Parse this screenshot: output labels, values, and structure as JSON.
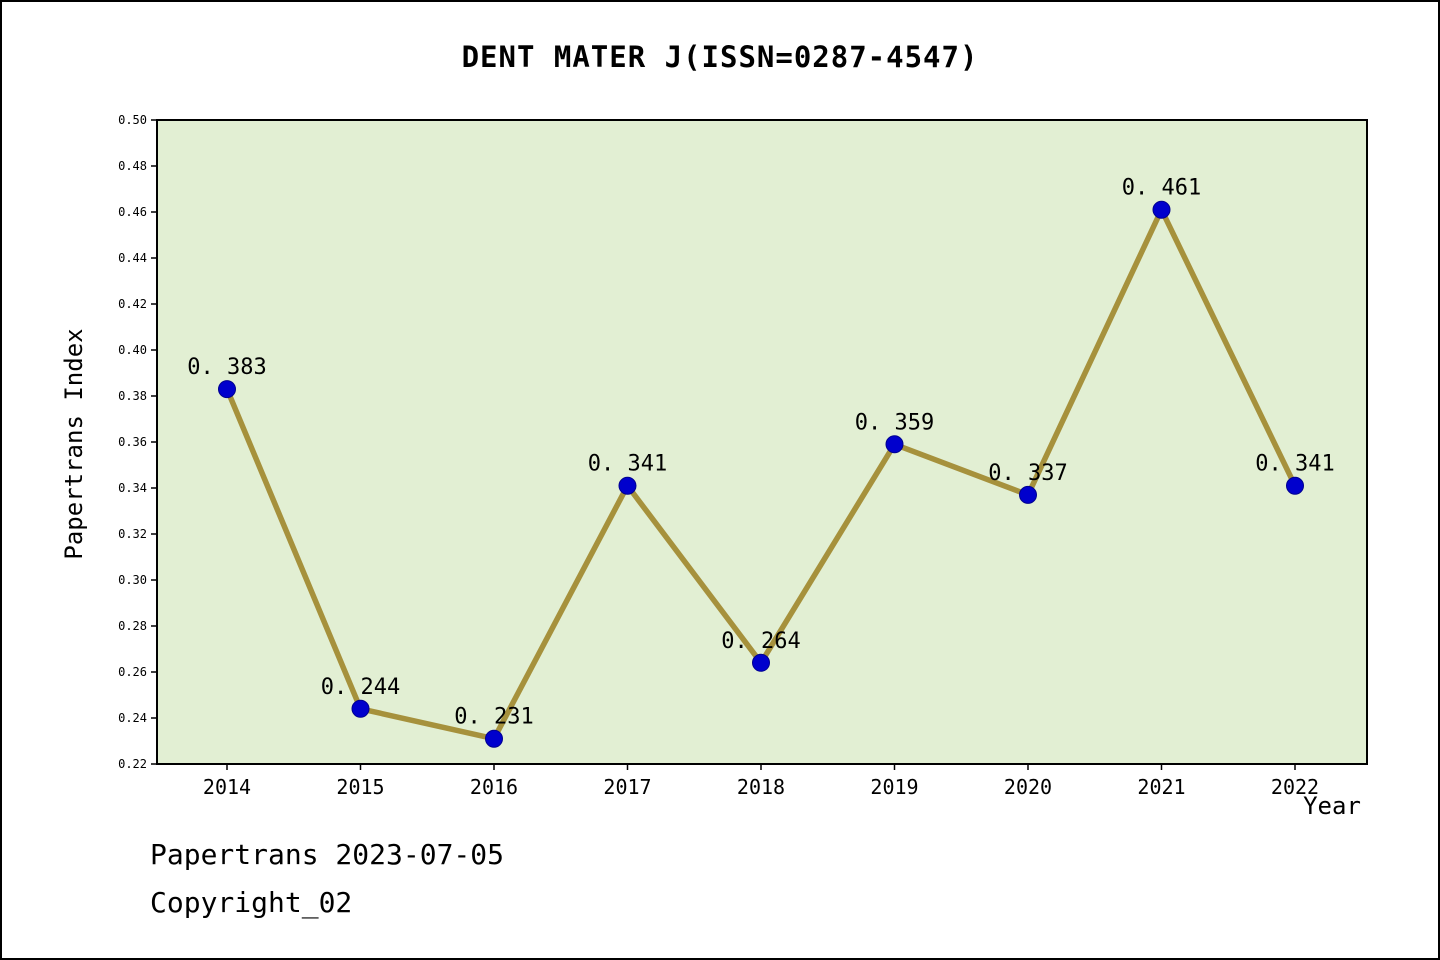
{
  "page": {
    "title": "DENT MATER J(ISSN=0287-4547)"
  },
  "footer": {
    "line1": "Papertrans 2023-07-05",
    "line2": "Copyright_02"
  },
  "chart_data": {
    "type": "line",
    "title": "DENT MATER J(ISSN=0287-4547)",
    "xlabel": "Year",
    "ylabel": "Papertrans Index",
    "x": [
      2014,
      2015,
      2016,
      2017,
      2018,
      2019,
      2020,
      2021,
      2022
    ],
    "series": [
      {
        "name": "Papertrans Index",
        "values": [
          0.383,
          0.244,
          0.231,
          0.341,
          0.264,
          0.359,
          0.337,
          0.461,
          0.341
        ]
      }
    ],
    "point_labels": [
      "0. 383",
      "0. 244",
      "0. 231",
      "0. 341",
      "0. 264",
      "0. 359",
      "0. 337",
      "0. 461",
      "0. 341"
    ],
    "ylim": [
      0.22,
      0.5
    ],
    "ytick_step": 0.02,
    "grid": false,
    "legend": false,
    "colors": {
      "line": "#a6913c",
      "point": "#0000cd",
      "point_edge": "#000090",
      "plot_bg": "#e2efd3",
      "axis": "#000000"
    }
  }
}
